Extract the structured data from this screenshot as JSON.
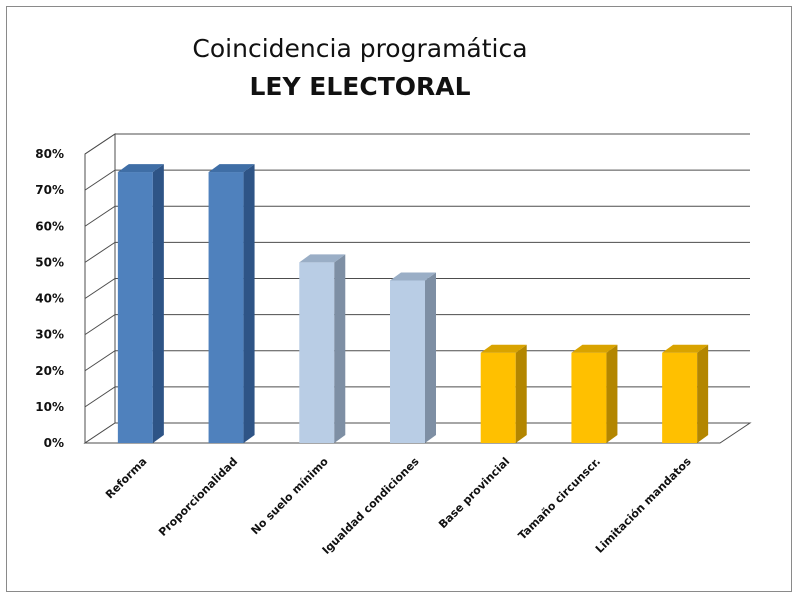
{
  "chart_data": {
    "type": "bar",
    "title": "Coincidencia programática",
    "subtitle": "LEY ELECTORAL",
    "categories": [
      "Reforma",
      "Proporcionalidad",
      "No suelo mínimo",
      "Igualdad condiciones",
      "Base provincial",
      "Tamaño circunscr.",
      "Limitación mandatos"
    ],
    "values": [
      0.75,
      0.75,
      0.5,
      0.45,
      0.25,
      0.25,
      0.25
    ],
    "ylim": [
      0,
      0.8
    ],
    "yticks": [
      "0%",
      "10%",
      "20%",
      "30%",
      "40%",
      "50%",
      "60%",
      "70%",
      "80%"
    ],
    "grid": true,
    "legend": "none",
    "style": "3d-column",
    "bar_colors": [
      "#4f81bd",
      "#4f81bd",
      "#b9cde5",
      "#b9cde5",
      "#ffc000",
      "#ffc000",
      "#ffc000"
    ],
    "bar_side_colors": [
      "#2e5486",
      "#2e5486",
      "#7e8fa4",
      "#7e8fa4",
      "#b38600",
      "#b38600",
      "#b38600"
    ],
    "bar_top_colors": [
      "#3f6ea6",
      "#3f6ea6",
      "#9aaec6",
      "#9aaec6",
      "#d9a300",
      "#d9a300",
      "#d9a300"
    ],
    "gridline_color": "#4d4d4d"
  }
}
